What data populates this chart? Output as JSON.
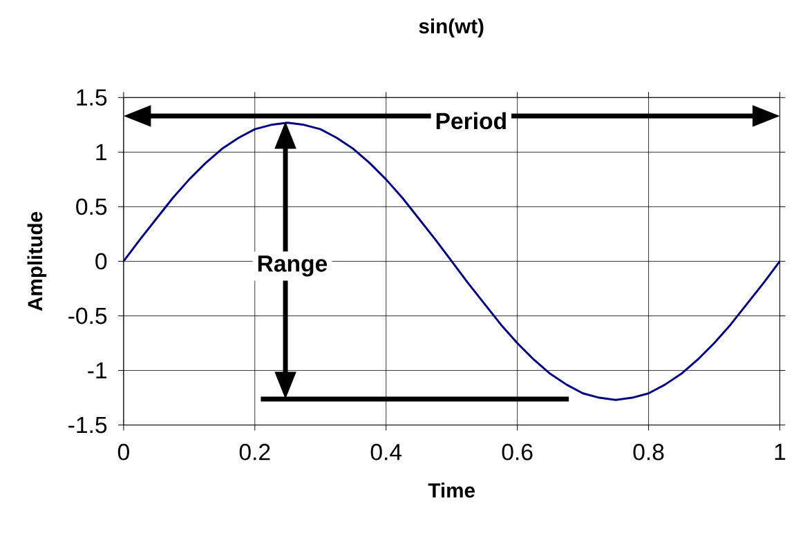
{
  "chart_data": {
    "type": "line",
    "title": "sin(wt)",
    "xlabel": "Time",
    "ylabel": "Amplitude",
    "x": [
      0,
      0.025,
      0.05,
      0.075,
      0.1,
      0.125,
      0.15,
      0.175,
      0.2,
      0.225,
      0.25,
      0.275,
      0.3,
      0.325,
      0.35,
      0.375,
      0.4,
      0.425,
      0.45,
      0.475,
      0.5,
      0.525,
      0.55,
      0.575,
      0.6,
      0.625,
      0.65,
      0.675,
      0.7,
      0.725,
      0.75,
      0.775,
      0.8,
      0.825,
      0.85,
      0.875,
      0.9,
      0.925,
      0.95,
      0.975,
      1
    ],
    "series": [
      {
        "color": "#000080",
        "values": [
          0,
          0.2,
          0.39,
          0.58,
          0.75,
          0.9,
          1.03,
          1.13,
          1.21,
          1.25,
          1.27,
          1.25,
          1.21,
          1.13,
          1.03,
          0.9,
          0.75,
          0.58,
          0.39,
          0.2,
          0,
          -0.2,
          -0.39,
          -0.58,
          -0.75,
          -0.9,
          -1.03,
          -1.13,
          -1.21,
          -1.25,
          -1.27,
          -1.25,
          -1.21,
          -1.13,
          -1.03,
          -0.9,
          -0.75,
          -0.58,
          -0.39,
          -0.2,
          0
        ]
      }
    ],
    "xlim": [
      0,
      1
    ],
    "ylim": [
      -1.5,
      1.5
    ],
    "xticks": [
      0,
      0.2,
      0.4,
      0.6,
      0.8,
      1
    ],
    "yticks": [
      -1.5,
      -1,
      -0.5,
      0,
      0.5,
      1,
      1.5
    ],
    "grid": true,
    "marker": "none",
    "line_style": "solid",
    "annotations": [
      "Period",
      "Range"
    ]
  }
}
